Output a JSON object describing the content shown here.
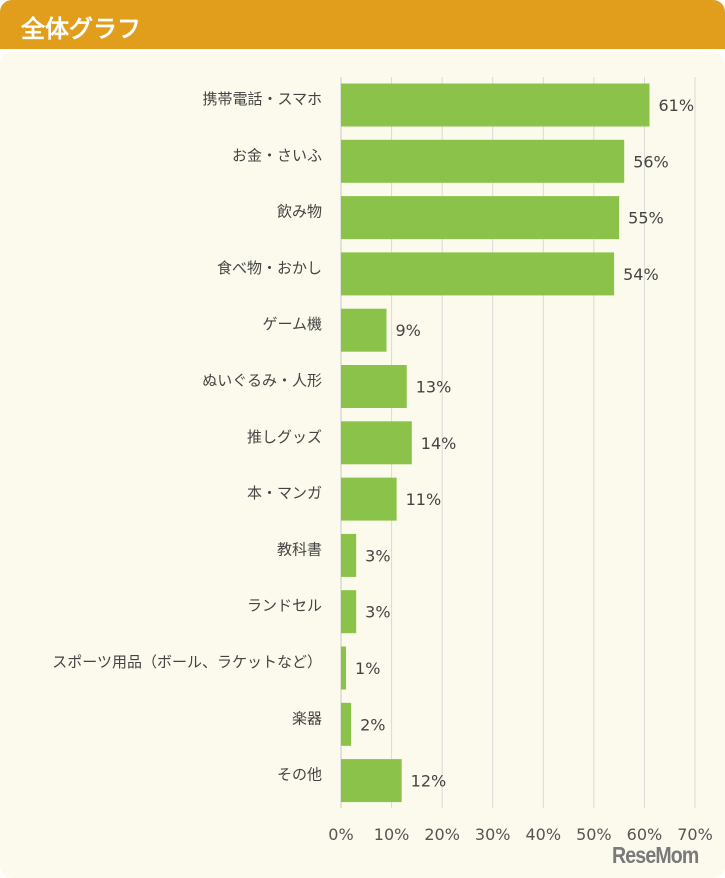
{
  "header": {
    "title": "全体グラフ"
  },
  "logo": "ReseMom",
  "colors": {
    "header": "#e09e1c",
    "bar": "#8bc34a",
    "background": "#fcfaec",
    "grid": "#d9d9d9"
  },
  "chart_data": {
    "type": "bar",
    "orientation": "horizontal",
    "title": "全体グラフ",
    "categories": [
      "携帯電話・スマホ",
      "お金・さいふ",
      "飲み物",
      "食べ物・おかし",
      "ゲーム機",
      "ぬいぐるみ・人形",
      "推しグッズ",
      "本・マンガ",
      "教科書",
      "ランドセル",
      "スポーツ用品（ボール、ラケットなど）",
      "楽器",
      "その他"
    ],
    "values": [
      61,
      56,
      55,
      54,
      9,
      13,
      14,
      11,
      3,
      3,
      1,
      2,
      12
    ],
    "value_labels": [
      "61%",
      "56%",
      "55%",
      "54%",
      "9%",
      "13%",
      "14%",
      "11%",
      "3%",
      "3%",
      "1%",
      "2%",
      "12%"
    ],
    "xlim": [
      0,
      70
    ],
    "xticks": [
      "0%",
      "10%",
      "20%",
      "30%",
      "40%",
      "50%",
      "60%",
      "70%"
    ],
    "grid": true,
    "xlabel": "",
    "ylabel": ""
  }
}
